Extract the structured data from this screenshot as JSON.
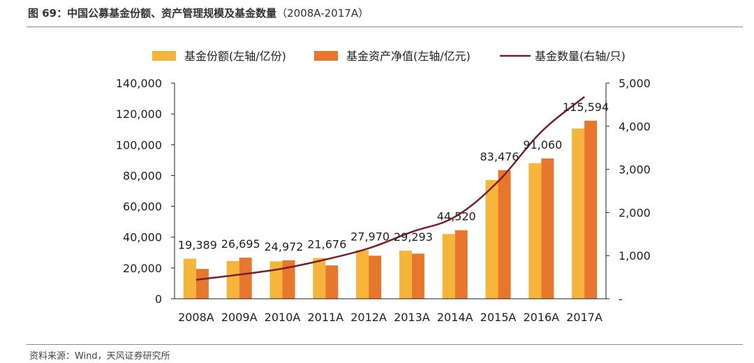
{
  "header": {
    "figure_label": "图 69：",
    "title": "中国公募基金份额、资产管理规模及基金数量",
    "range": "（2008A-2017A）"
  },
  "footer": {
    "source": "资料来源：Wind，天风证券研究所"
  },
  "colors": {
    "shares": "#F5B43A",
    "nav": "#E8772E",
    "count": "#7A1E28"
  },
  "chart_data": {
    "type": "bar",
    "categories": [
      "2008A",
      "2009A",
      "2010A",
      "2011A",
      "2012A",
      "2013A",
      "2014A",
      "2015A",
      "2016A",
      "2017A"
    ],
    "series": [
      {
        "name": "基金份额(左轴/亿份)",
        "axis": "left",
        "kind": "bar",
        "values": [
          26000,
          24500,
          24300,
          26500,
          31500,
          31200,
          42000,
          77000,
          88000,
          110500
        ]
      },
      {
        "name": "基金资产净值(左轴/亿元)",
        "axis": "left",
        "kind": "bar",
        "values": [
          19389,
          26695,
          24972,
          21676,
          27970,
          29293,
          44520,
          83476,
          91060,
          115594
        ]
      },
      {
        "name": "基金数量(右轴/只)",
        "axis": "right",
        "kind": "line",
        "values": [
          440,
          560,
          700,
          910,
          1170,
          1550,
          1900,
          2720,
          3870,
          4680
        ]
      }
    ],
    "data_labels": [
      "19,389",
      "26,695",
      "24,972",
      "21,676",
      "27,970",
      "29,293",
      "44,520",
      "83,476",
      "91,060",
      "115,594"
    ],
    "left_axis": {
      "ylim": [
        0,
        140000
      ],
      "ticks": [
        0,
        20000,
        40000,
        60000,
        80000,
        100000,
        120000,
        140000
      ],
      "tick_labels": [
        "0",
        "20,000",
        "40,000",
        "60,000",
        "80,000",
        "100,000",
        "120,000",
        "140,000"
      ]
    },
    "right_axis": {
      "ylim": [
        0,
        5000
      ],
      "ticks": [
        0,
        1000,
        2000,
        3000,
        4000,
        5000
      ],
      "tick_labels": [
        "-",
        "1,000",
        "2,000",
        "3,000",
        "4,000",
        "5,000"
      ]
    },
    "legend_position": "top"
  }
}
